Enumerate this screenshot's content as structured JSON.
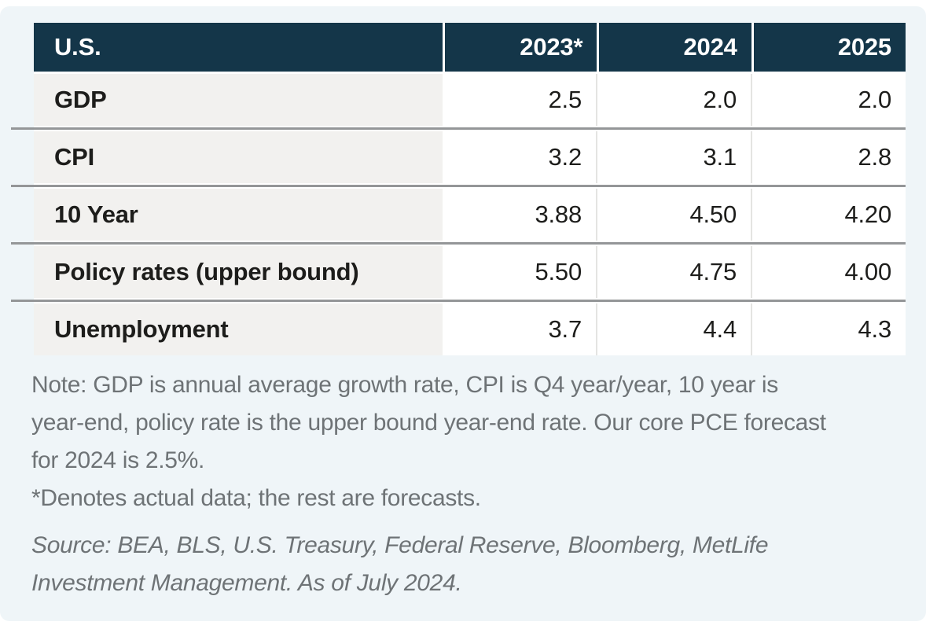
{
  "chart_data": {
    "type": "table",
    "title": "U.S.",
    "columns": [
      "U.S.",
      "2023*",
      "2024",
      "2025"
    ],
    "rows": [
      [
        "GDP",
        "2.5",
        "2.0",
        "2.0"
      ],
      [
        "CPI",
        "3.2",
        "3.1",
        "2.8"
      ],
      [
        "10 Year",
        "3.88",
        "4.50",
        "4.20"
      ],
      [
        "Policy rates (upper bound)",
        "5.50",
        "4.75",
        "4.00"
      ],
      [
        "Unemployment",
        "3.7",
        "4.4",
        "4.3"
      ]
    ],
    "note": "Note: GDP is annual average growth rate, CPI is Q4 year/year, 10 year is year-end, policy rate is the upper bound year-end rate. Our core PCE forecast for 2024 is 2.5%.",
    "footnote": "*Denotes actual data; the rest are forecasts.",
    "source": "Source: BEA, BLS, U.S. Treasury, Federal Reserve, Bloomberg, MetLife Investment Management. As of July 2024."
  },
  "colors": {
    "header_navy": "#143649",
    "panel_background": "#eff5f8",
    "label_column_background": "#f2f1ef",
    "row_separator_gray": "#949698",
    "note_text_gray": "#6e7376",
    "body_text": "#1d1d1b"
  }
}
